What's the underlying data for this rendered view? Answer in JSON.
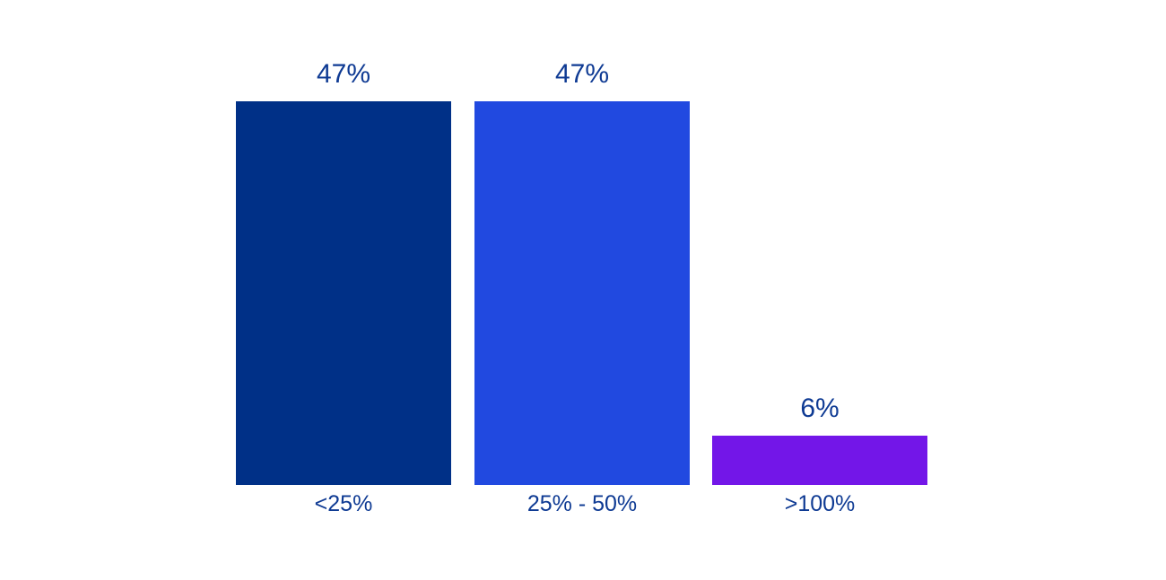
{
  "chart_data": {
    "type": "bar",
    "title": "",
    "xlabel": "",
    "ylabel": "",
    "categories": [
      "<25%",
      "25% - 50%",
      ">100%"
    ],
    "values": [
      47,
      47,
      6
    ],
    "data_labels": [
      "47%",
      "47%",
      "6%"
    ],
    "colors": [
      "#003087",
      "#2149e0",
      "#7316e8"
    ],
    "label_color": "#0e3a93",
    "background_color": "#ffffff",
    "ylim": [
      0,
      47
    ],
    "grid": false,
    "axes_visible": false,
    "legend": "none"
  }
}
